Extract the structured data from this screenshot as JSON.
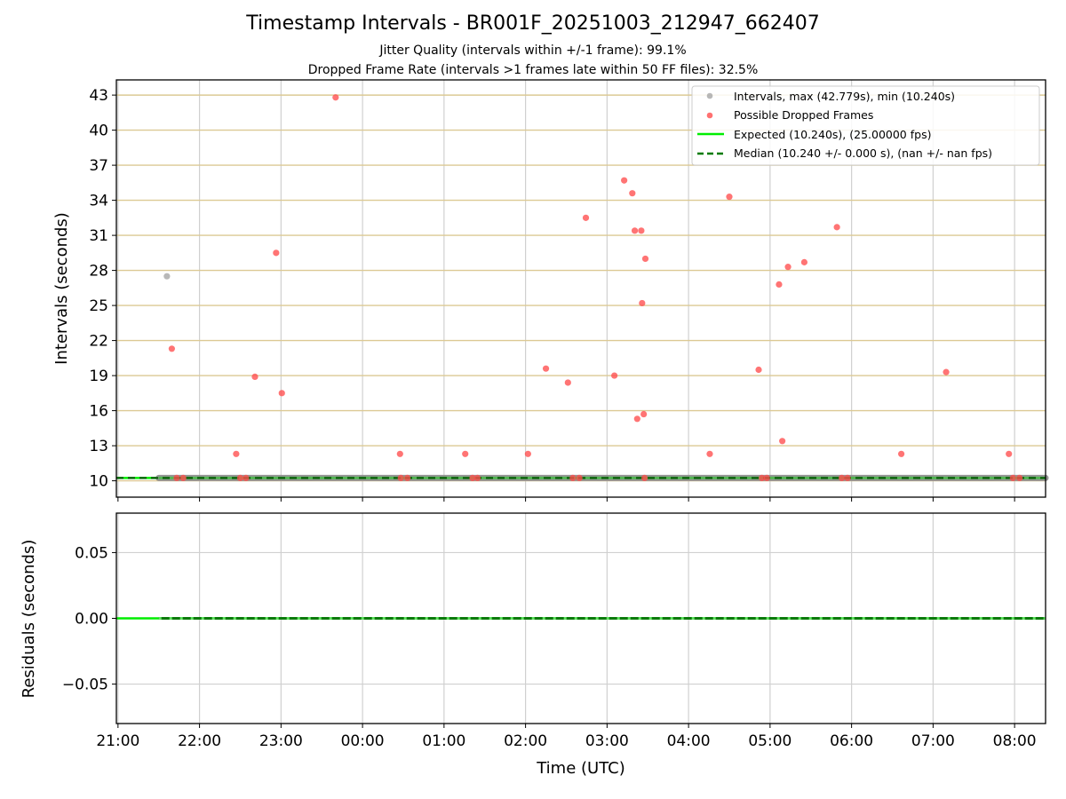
{
  "chart_data": [
    {
      "type": "scatter",
      "title": "Timestamp Intervals - BR001F_20251003_212947_662407",
      "subtitle_lines": [
        "Jitter Quality (intervals within +/-1 frame): 99.1%",
        "Dropped Frame Rate (intervals >1 frames late within 50 FF files): 32.5%"
      ],
      "xlabel": "",
      "ylabel": "Intervals (seconds)",
      "x_tick_labels": [
        "21:00",
        "22:00",
        "23:00",
        "00:00",
        "01:00",
        "02:00",
        "03:00",
        "04:00",
        "05:00",
        "06:00",
        "07:00",
        "08:00"
      ],
      "x_tick_hours": [
        21,
        22,
        23,
        24,
        25,
        26,
        27,
        28,
        29,
        30,
        31,
        32
      ],
      "xlim_hours": [
        20.98,
        32.38
      ],
      "ylim": [
        8.6,
        44.3
      ],
      "y_ticks": [
        10,
        13,
        16,
        19,
        22,
        25,
        28,
        31,
        34,
        37,
        40,
        43
      ],
      "y_tick_labels": [
        "10",
        "13",
        "16",
        "19",
        "22",
        "25",
        "28",
        "31",
        "34",
        "37",
        "40",
        "43"
      ],
      "grid": true,
      "legend_position": "top-right",
      "legend": [
        {
          "label": "Intervals, max (42.779s), min (10.240s)",
          "kind": "marker",
          "color": "#a0a0a0"
        },
        {
          "label": "Possible Dropped Frames",
          "kind": "marker",
          "color": "#ff4d4d"
        },
        {
          "label": "Expected (10.240s), (25.00000 fps)",
          "kind": "line",
          "color": "#00ee00"
        },
        {
          "label": "Median (10.240 +/- 0.000 s), (nan +/- nan fps)",
          "kind": "dashed",
          "color": "#007a00"
        }
      ],
      "expected_value": 10.24,
      "median_value": 10.24,
      "baseline_start_hour": 21.5,
      "series": [
        {
          "name": "Intervals, max (42.779s), min (10.240s)",
          "color": "#a0a0a0",
          "points": [
            [
              21.6,
              27.5
            ]
          ]
        },
        {
          "name": "Possible Dropped Frames",
          "color": "#ff4d4d",
          "points": [
            [
              21.66,
              21.3
            ],
            [
              21.72,
              10.24
            ],
            [
              21.8,
              10.24
            ],
            [
              22.45,
              12.3
            ],
            [
              22.5,
              10.24
            ],
            [
              22.57,
              10.24
            ],
            [
              22.68,
              18.9
            ],
            [
              22.94,
              29.5
            ],
            [
              23.01,
              17.5
            ],
            [
              23.67,
              42.8
            ],
            [
              24.46,
              12.3
            ],
            [
              24.47,
              10.24
            ],
            [
              24.55,
              10.24
            ],
            [
              25.26,
              12.3
            ],
            [
              25.35,
              10.24
            ],
            [
              25.41,
              10.24
            ],
            [
              26.03,
              12.3
            ],
            [
              26.25,
              19.6
            ],
            [
              26.52,
              18.4
            ],
            [
              26.58,
              10.24
            ],
            [
              26.66,
              10.24
            ],
            [
              26.74,
              32.5
            ],
            [
              27.09,
              19.0
            ],
            [
              27.21,
              35.7
            ],
            [
              27.31,
              34.6
            ],
            [
              27.34,
              31.4
            ],
            [
              27.37,
              15.3
            ],
            [
              27.42,
              31.4
            ],
            [
              27.43,
              25.2
            ],
            [
              27.45,
              15.7
            ],
            [
              27.46,
              10.24
            ],
            [
              27.47,
              29.0
            ],
            [
              28.26,
              12.3
            ],
            [
              28.5,
              34.3
            ],
            [
              28.86,
              19.5
            ],
            [
              28.9,
              10.24
            ],
            [
              28.96,
              10.24
            ],
            [
              29.11,
              26.8
            ],
            [
              29.15,
              13.4
            ],
            [
              29.22,
              28.3
            ],
            [
              29.42,
              28.7
            ],
            [
              29.82,
              31.7
            ],
            [
              29.88,
              10.24
            ],
            [
              29.95,
              10.24
            ],
            [
              30.61,
              12.3
            ],
            [
              31.16,
              19.3
            ],
            [
              31.93,
              12.3
            ],
            [
              31.98,
              10.24
            ],
            [
              32.06,
              10.24
            ]
          ]
        }
      ]
    },
    {
      "type": "line",
      "xlabel": "Time (UTC)",
      "ylabel": "Residuals (seconds)",
      "ylim": [
        -0.08,
        0.08
      ],
      "y_ticks": [
        0.05,
        0.0,
        -0.05
      ],
      "y_tick_labels": [
        "0.05",
        "0.00",
        "−0.05"
      ],
      "xlim_hours": [
        20.98,
        32.38
      ],
      "grid": true,
      "residual_value": 0.0
    }
  ]
}
